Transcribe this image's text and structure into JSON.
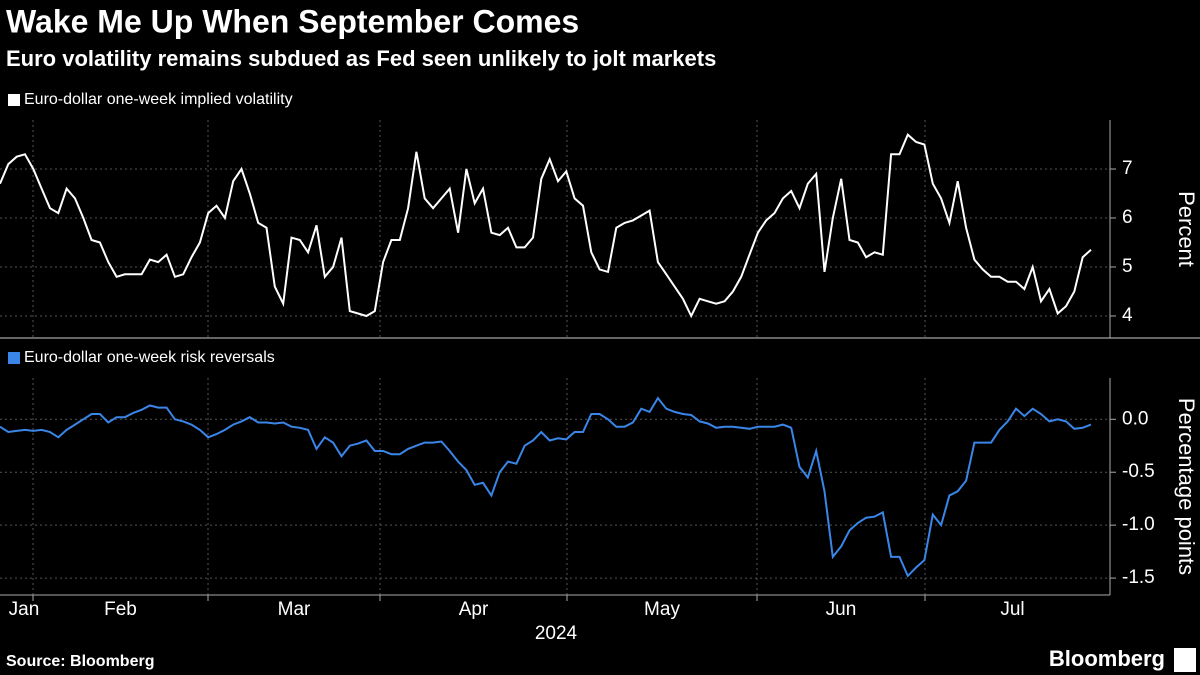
{
  "title": "Wake Me Up When September Comes",
  "subtitle": "Euro volatility remains subdued as Fed seen unlikely to jolt markets",
  "source": "Source: Bloomberg",
  "brand": "Bloomberg",
  "chart_data": [
    {
      "type": "line",
      "ylabel": "Percent",
      "ylim": [
        3.55,
        8
      ],
      "yticks": [
        4,
        5,
        6,
        7
      ],
      "grid": true,
      "series": [
        {
          "name": "Euro-dollar one-week implied volatility",
          "color": "#ffffff",
          "values": [
            6.7,
            7.1,
            7.25,
            7.3,
            7.0,
            6.6,
            6.2,
            6.1,
            6.6,
            6.4,
            6.0,
            5.55,
            5.5,
            5.1,
            4.8,
            4.85,
            4.85,
            4.85,
            5.15,
            5.1,
            5.25,
            4.8,
            4.85,
            5.2,
            5.5,
            6.1,
            6.25,
            6.0,
            6.75,
            7.0,
            6.5,
            5.9,
            5.8,
            4.6,
            4.25,
            5.6,
            5.55,
            5.3,
            5.85,
            4.8,
            5.0,
            5.6,
            4.1,
            4.05,
            4.0,
            4.1,
            5.1,
            5.55,
            5.55,
            6.2,
            7.35,
            6.4,
            6.2,
            6.4,
            6.6,
            5.7,
            7.0,
            6.3,
            6.6,
            5.7,
            5.65,
            5.8,
            5.4,
            5.4,
            5.6,
            6.8,
            7.2,
            6.75,
            6.95,
            6.4,
            6.25,
            5.3,
            4.95,
            4.9,
            5.8,
            5.9,
            5.95,
            6.05,
            6.15,
            5.1,
            4.85,
            4.6,
            4.35,
            4.0,
            4.35,
            4.3,
            4.25,
            4.3,
            4.5,
            4.8,
            5.25,
            5.7,
            5.95,
            6.1,
            6.4,
            6.55,
            6.2,
            6.7,
            6.9,
            4.9,
            6.0,
            6.8,
            5.55,
            5.5,
            5.2,
            5.3,
            5.25,
            7.3,
            7.3,
            7.7,
            7.55,
            7.5,
            6.7,
            6.4,
            5.9,
            6.75,
            5.8,
            5.15,
            4.95,
            4.8,
            4.8,
            4.7,
            4.7,
            4.55,
            5.0,
            4.3,
            4.55,
            4.05,
            4.2,
            4.5,
            5.2,
            5.35
          ]
        }
      ]
    },
    {
      "type": "line",
      "ylabel": "Percentage points",
      "ylim": [
        -1.66,
        0.39
      ],
      "yticks": [
        {
          "value": 0,
          "label": "0.0"
        },
        -0.5,
        {
          "value": -1,
          "label": "-1.0"
        },
        -1.5
      ],
      "grid": true,
      "month_labels": [
        "Jan",
        "Feb",
        "Mar",
        "Apr",
        "May",
        "Jun",
        "Jul"
      ],
      "xlabel": "2024",
      "series": [
        {
          "name": "Euro-dollar one-week risk reversals",
          "color": "#3a86e8",
          "values": [
            -0.07,
            -0.12,
            -0.11,
            -0.1,
            -0.11,
            -0.1,
            -0.12,
            -0.17,
            -0.1,
            -0.05,
            0.0,
            0.05,
            0.05,
            -0.03,
            0.02,
            0.02,
            0.06,
            0.09,
            0.13,
            0.11,
            0.11,
            0.0,
            -0.02,
            -0.05,
            -0.1,
            -0.17,
            -0.14,
            -0.1,
            -0.05,
            -0.02,
            0.02,
            -0.03,
            -0.03,
            -0.04,
            -0.03,
            -0.07,
            -0.08,
            -0.1,
            -0.28,
            -0.17,
            -0.22,
            -0.35,
            -0.25,
            -0.23,
            -0.2,
            -0.3,
            -0.3,
            -0.33,
            -0.33,
            -0.28,
            -0.25,
            -0.22,
            -0.22,
            -0.21,
            -0.3,
            -0.4,
            -0.48,
            -0.62,
            -0.6,
            -0.72,
            -0.5,
            -0.4,
            -0.42,
            -0.25,
            -0.2,
            -0.12,
            -0.2,
            -0.18,
            -0.19,
            -0.12,
            -0.12,
            0.05,
            0.05,
            0.0,
            -0.07,
            -0.07,
            -0.03,
            0.1,
            0.07,
            0.2,
            0.1,
            0.07,
            0.05,
            0.04,
            -0.02,
            -0.04,
            -0.08,
            -0.07,
            -0.07,
            -0.08,
            -0.09,
            -0.07,
            -0.07,
            -0.07,
            -0.05,
            -0.08,
            -0.45,
            -0.55,
            -0.3,
            -0.68,
            -1.3,
            -1.2,
            -1.05,
            -0.98,
            -0.93,
            -0.92,
            -0.88,
            -1.3,
            -1.3,
            -1.48,
            -1.4,
            -1.33,
            -0.9,
            -1.0,
            -0.72,
            -0.68,
            -0.58,
            -0.22,
            -0.22,
            -0.22,
            -0.1,
            -0.02,
            0.1,
            0.03,
            0.1,
            0.05,
            -0.02,
            0.0,
            -0.02,
            -0.09,
            -0.08,
            -0.05
          ]
        }
      ]
    }
  ]
}
